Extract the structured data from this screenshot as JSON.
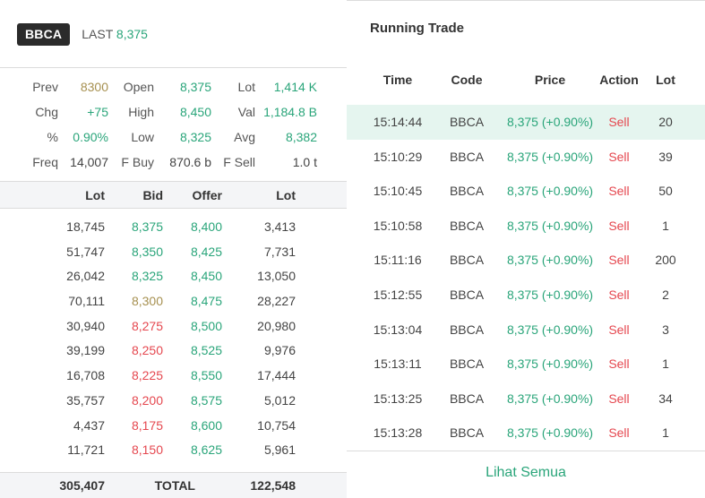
{
  "header": {
    "ticker": "BBCA",
    "last_label": "LAST",
    "last_value": "8,375"
  },
  "stats": [
    [
      {
        "label": "Prev",
        "value": "8300",
        "color": "olive"
      },
      {
        "label": "Open",
        "value": "8,375",
        "color": "green"
      },
      {
        "label": "Lot",
        "value": "1,414 K",
        "color": "green"
      }
    ],
    [
      {
        "label": "Chg",
        "value": "+75",
        "color": "green"
      },
      {
        "label": "High",
        "value": "8,450",
        "color": "green"
      },
      {
        "label": "Val",
        "value": "1,184.8 B",
        "color": "green"
      }
    ],
    [
      {
        "label": "%",
        "value": "0.90%",
        "color": "green"
      },
      {
        "label": "Low",
        "value": "8,325",
        "color": "green"
      },
      {
        "label": "Avg",
        "value": "8,382",
        "color": "green"
      }
    ],
    [
      {
        "label": "Freq",
        "value": "14,007",
        "color": "dark"
      },
      {
        "label": "F Buy",
        "value": "870.6 b",
        "color": "dark"
      },
      {
        "label": "F Sell",
        "value": "1.0 t",
        "color": "dark"
      }
    ]
  ],
  "orderbook": {
    "headers": [
      "Lot",
      "Bid",
      "Offer",
      "Lot"
    ],
    "rows": [
      {
        "bid_lot": "18,745",
        "bid": "8,375",
        "bid_color": "green",
        "offer": "8,400",
        "offer_color": "green",
        "offer_lot": "3,413"
      },
      {
        "bid_lot": "51,747",
        "bid": "8,350",
        "bid_color": "green",
        "offer": "8,425",
        "offer_color": "green",
        "offer_lot": "7,731"
      },
      {
        "bid_lot": "26,042",
        "bid": "8,325",
        "bid_color": "green",
        "offer": "8,450",
        "offer_color": "green",
        "offer_lot": "13,050"
      },
      {
        "bid_lot": "70,111",
        "bid": "8,300",
        "bid_color": "olive",
        "offer": "8,475",
        "offer_color": "green",
        "offer_lot": "28,227"
      },
      {
        "bid_lot": "30,940",
        "bid": "8,275",
        "bid_color": "red",
        "offer": "8,500",
        "offer_color": "green",
        "offer_lot": "20,980"
      },
      {
        "bid_lot": "39,199",
        "bid": "8,250",
        "bid_color": "red",
        "offer": "8,525",
        "offer_color": "green",
        "offer_lot": "9,976"
      },
      {
        "bid_lot": "16,708",
        "bid": "8,225",
        "bid_color": "red",
        "offer": "8,550",
        "offer_color": "green",
        "offer_lot": "17,444"
      },
      {
        "bid_lot": "35,757",
        "bid": "8,200",
        "bid_color": "red",
        "offer": "8,575",
        "offer_color": "green",
        "offer_lot": "5,012"
      },
      {
        "bid_lot": "4,437",
        "bid": "8,175",
        "bid_color": "red",
        "offer": "8,600",
        "offer_color": "green",
        "offer_lot": "10,754"
      },
      {
        "bid_lot": "11,721",
        "bid": "8,150",
        "bid_color": "red",
        "offer": "8,625",
        "offer_color": "green",
        "offer_lot": "5,961"
      }
    ],
    "total": {
      "bid_lot": "305,407",
      "label": "TOTAL",
      "offer_lot": "122,548"
    }
  },
  "running_trade": {
    "title": "Running Trade",
    "headers": [
      "Time",
      "Code",
      "Price",
      "Action",
      "Lot"
    ],
    "rows": [
      {
        "time": "15:14:44",
        "code": "BBCA",
        "price": "8,375 (+0.90%)",
        "action": "Sell",
        "lot": "20",
        "highlight": true
      },
      {
        "time": "15:10:29",
        "code": "BBCA",
        "price": "8,375 (+0.90%)",
        "action": "Sell",
        "lot": "39"
      },
      {
        "time": "15:10:45",
        "code": "BBCA",
        "price": "8,375 (+0.90%)",
        "action": "Sell",
        "lot": "50"
      },
      {
        "time": "15:10:58",
        "code": "BBCA",
        "price": "8,375 (+0.90%)",
        "action": "Sell",
        "lot": "1"
      },
      {
        "time": "15:11:16",
        "code": "BBCA",
        "price": "8,375 (+0.90%)",
        "action": "Sell",
        "lot": "200"
      },
      {
        "time": "15:12:55",
        "code": "BBCA",
        "price": "8,375 (+0.90%)",
        "action": "Sell",
        "lot": "2"
      },
      {
        "time": "15:13:04",
        "code": "BBCA",
        "price": "8,375 (+0.90%)",
        "action": "Sell",
        "lot": "3"
      },
      {
        "time": "15:13:11",
        "code": "BBCA",
        "price": "8,375 (+0.90%)",
        "action": "Sell",
        "lot": "1"
      },
      {
        "time": "15:13:25",
        "code": "BBCA",
        "price": "8,375 (+0.90%)",
        "action": "Sell",
        "lot": "34"
      },
      {
        "time": "15:13:28",
        "code": "BBCA",
        "price": "8,375 (+0.90%)",
        "action": "Sell",
        "lot": "1"
      }
    ],
    "see_all": "Lihat Semua"
  },
  "colors": {
    "green": "#2aa57a",
    "red": "#e5474f",
    "olive": "#a69050",
    "highlight": "#e5f5ef"
  }
}
